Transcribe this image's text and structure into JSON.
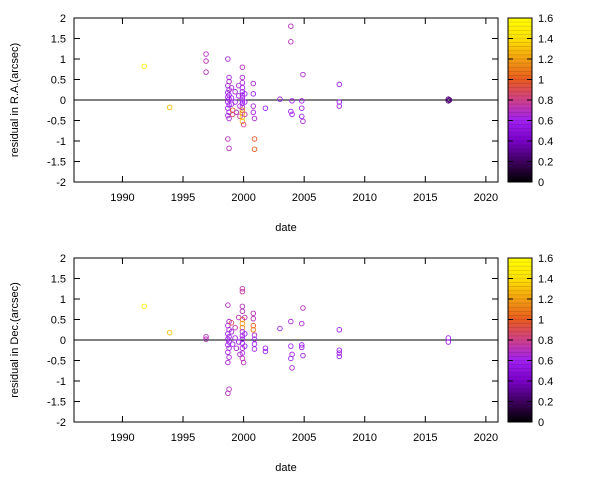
{
  "chart_data": [
    {
      "type": "scatter",
      "xlabel": "date",
      "ylabel": "residual in R.A.(arcsec)",
      "xlim": [
        1986,
        2021
      ],
      "ylim": [
        -2,
        2
      ],
      "xticks": [
        "1990",
        "1995",
        "2000",
        "2005",
        "2010",
        "2015",
        "2020"
      ],
      "yticks": [
        "2",
        "1.5",
        "1",
        "0.5",
        "0",
        "-0.5",
        "-1",
        "-1.5",
        "-2"
      ],
      "zero_line": true,
      "grid": false,
      "colorbar": {
        "position": "right",
        "range": [
          0,
          1.6
        ],
        "ticks": [
          "1.6",
          "1.4",
          "1.2",
          "1",
          "0.8",
          "0.6",
          "0.4",
          "0.2",
          "0"
        ],
        "palette": [
          "#000000",
          "#400060",
          "#7a00c8",
          "#a020f0",
          "#d0408a",
          "#e85a1e",
          "#f3a010",
          "#ffe000",
          "#ffff00"
        ]
      },
      "points": [
        {
          "x": 1991.8,
          "y": 0.82,
          "c": 1.6
        },
        {
          "x": 1993.9,
          "y": -0.18,
          "c": 1.3
        },
        {
          "x": 1996.9,
          "y": 1.12,
          "c": 0.7
        },
        {
          "x": 1996.9,
          "y": 0.95,
          "c": 0.7
        },
        {
          "x": 1996.9,
          "y": 0.68,
          "c": 0.7
        },
        {
          "x": 1998.7,
          "y": 1.0,
          "c": 0.65
        },
        {
          "x": 1998.8,
          "y": 0.55,
          "c": 0.65
        },
        {
          "x": 1998.8,
          "y": 0.45,
          "c": 0.65
        },
        {
          "x": 1998.7,
          "y": 0.35,
          "c": 0.65
        },
        {
          "x": 1998.8,
          "y": 0.25,
          "c": 0.6
        },
        {
          "x": 1998.7,
          "y": 0.18,
          "c": 0.6
        },
        {
          "x": 1998.8,
          "y": 0.12,
          "c": 0.6
        },
        {
          "x": 1998.7,
          "y": 0.07,
          "c": 0.6
        },
        {
          "x": 1998.8,
          "y": 0.02,
          "c": 0.6
        },
        {
          "x": 1998.7,
          "y": -0.05,
          "c": 0.6
        },
        {
          "x": 1998.8,
          "y": -0.12,
          "c": 0.6
        },
        {
          "x": 1998.7,
          "y": -0.2,
          "c": 0.6
        },
        {
          "x": 1998.8,
          "y": -0.3,
          "c": 0.6
        },
        {
          "x": 1998.7,
          "y": -0.38,
          "c": 0.65
        },
        {
          "x": 1998.8,
          "y": -0.45,
          "c": 0.65
        },
        {
          "x": 1998.7,
          "y": -0.95,
          "c": 0.7
        },
        {
          "x": 1998.8,
          "y": -1.18,
          "c": 0.7
        },
        {
          "x": 1999.0,
          "y": 0.3,
          "c": 0.65
        },
        {
          "x": 1999.0,
          "y": 0.05,
          "c": 0.6
        },
        {
          "x": 1999.0,
          "y": -0.1,
          "c": 0.6
        },
        {
          "x": 1999.1,
          "y": -0.25,
          "c": 1.0
        },
        {
          "x": 1999.1,
          "y": -0.35,
          "c": 0.9
        },
        {
          "x": 1999.3,
          "y": 0.2,
          "c": 0.65
        },
        {
          "x": 1999.3,
          "y": -0.05,
          "c": 0.6
        },
        {
          "x": 1999.4,
          "y": -0.3,
          "c": 0.7
        },
        {
          "x": 1999.6,
          "y": 0.35,
          "c": 0.65
        },
        {
          "x": 1999.6,
          "y": 0.1,
          "c": 0.6
        },
        {
          "x": 1999.7,
          "y": -0.15,
          "c": 0.65
        },
        {
          "x": 1999.7,
          "y": -0.4,
          "c": 0.8
        },
        {
          "x": 1999.9,
          "y": 0.8,
          "c": 0.7
        },
        {
          "x": 1999.9,
          "y": 0.55,
          "c": 0.65
        },
        {
          "x": 1999.9,
          "y": 0.42,
          "c": 0.65
        },
        {
          "x": 1999.9,
          "y": 0.3,
          "c": 0.6
        },
        {
          "x": 1999.9,
          "y": 0.2,
          "c": 0.6
        },
        {
          "x": 1999.9,
          "y": 0.12,
          "c": 0.6
        },
        {
          "x": 1999.9,
          "y": 0.05,
          "c": 0.6
        },
        {
          "x": 1999.9,
          "y": -0.02,
          "c": 0.6
        },
        {
          "x": 1999.9,
          "y": -0.08,
          "c": 0.6
        },
        {
          "x": 1999.9,
          "y": -0.18,
          "c": 0.65
        },
        {
          "x": 1999.9,
          "y": -0.25,
          "c": 1.1
        },
        {
          "x": 1999.9,
          "y": -0.32,
          "c": 1.2
        },
        {
          "x": 1999.9,
          "y": -0.42,
          "c": 1.3
        },
        {
          "x": 1999.9,
          "y": -0.52,
          "c": 1.3
        },
        {
          "x": 2000.0,
          "y": -0.6,
          "c": 0.8
        },
        {
          "x": 2000.1,
          "y": 0.15,
          "c": 0.6
        },
        {
          "x": 2000.1,
          "y": -0.05,
          "c": 0.6
        },
        {
          "x": 2000.1,
          "y": -0.35,
          "c": 0.75
        },
        {
          "x": 2000.8,
          "y": 0.4,
          "c": 0.65
        },
        {
          "x": 2000.8,
          "y": 0.15,
          "c": 0.6
        },
        {
          "x": 2000.8,
          "y": -0.15,
          "c": 0.65
        },
        {
          "x": 2000.8,
          "y": -0.3,
          "c": 0.65
        },
        {
          "x": 2000.9,
          "y": -0.45,
          "c": 0.65
        },
        {
          "x": 2000.9,
          "y": -0.95,
          "c": 1.0
        },
        {
          "x": 2000.9,
          "y": -1.2,
          "c": 1.0
        },
        {
          "x": 2001.8,
          "y": -0.2,
          "c": 0.6
        },
        {
          "x": 2003.0,
          "y": 0.02,
          "c": 0.6
        },
        {
          "x": 2003.9,
          "y": 1.8,
          "c": 0.7
        },
        {
          "x": 2003.9,
          "y": 1.42,
          "c": 0.7
        },
        {
          "x": 2004.0,
          "y": -0.02,
          "c": 0.6
        },
        {
          "x": 2003.9,
          "y": -0.28,
          "c": 0.6
        },
        {
          "x": 2004.0,
          "y": -0.35,
          "c": 0.6
        },
        {
          "x": 2004.9,
          "y": 0.62,
          "c": 0.65
        },
        {
          "x": 2004.8,
          "y": -0.02,
          "c": 0.6
        },
        {
          "x": 2004.8,
          "y": -0.2,
          "c": 0.6
        },
        {
          "x": 2004.8,
          "y": -0.4,
          "c": 0.6
        },
        {
          "x": 2004.9,
          "y": -0.52,
          "c": 0.65
        },
        {
          "x": 2007.9,
          "y": 0.38,
          "c": 0.6
        },
        {
          "x": 2007.9,
          "y": -0.05,
          "c": 0.6
        },
        {
          "x": 2007.9,
          "y": -0.15,
          "c": 0.6
        },
        {
          "x": 2016.9,
          "y": 0.02,
          "c": 0.3
        },
        {
          "x": 2016.9,
          "y": -0.02,
          "c": 0.2
        },
        {
          "x": 2017.0,
          "y": 0.0,
          "c": 0.25
        }
      ]
    },
    {
      "type": "scatter",
      "xlabel": "date",
      "ylabel": "residual in Dec.(arcsec)",
      "xlim": [
        1986,
        2021
      ],
      "ylim": [
        -2,
        2
      ],
      "xticks": [
        "1990",
        "1995",
        "2000",
        "2005",
        "2010",
        "2015",
        "2020"
      ],
      "yticks": [
        "2",
        "1.5",
        "1",
        "0.5",
        "0",
        "-0.5",
        "-1",
        "-1.5",
        "-2"
      ],
      "zero_line": true,
      "grid": false,
      "colorbar": {
        "position": "right",
        "range": [
          0,
          1.6
        ],
        "ticks": [
          "1.6",
          "1.4",
          "1.2",
          "1",
          "0.8",
          "0.6",
          "0.4",
          "0.2",
          "0"
        ],
        "palette": [
          "#000000",
          "#400060",
          "#7a00c8",
          "#a020f0",
          "#d0408a",
          "#e85a1e",
          "#f3a010",
          "#ffe000",
          "#ffff00"
        ]
      },
      "points": [
        {
          "x": 1991.8,
          "y": 0.82,
          "c": 1.6
        },
        {
          "x": 1993.9,
          "y": 0.18,
          "c": 1.3
        },
        {
          "x": 1996.9,
          "y": 0.08,
          "c": 0.7
        },
        {
          "x": 1996.9,
          "y": 0.02,
          "c": 0.7
        },
        {
          "x": 1998.7,
          "y": 0.85,
          "c": 0.7
        },
        {
          "x": 1998.8,
          "y": 0.45,
          "c": 0.65
        },
        {
          "x": 1998.7,
          "y": 0.35,
          "c": 0.65
        },
        {
          "x": 1998.8,
          "y": 0.25,
          "c": 0.6
        },
        {
          "x": 1998.7,
          "y": 0.15,
          "c": 0.6
        },
        {
          "x": 1998.8,
          "y": 0.08,
          "c": 0.6
        },
        {
          "x": 1998.7,
          "y": 0.02,
          "c": 0.6
        },
        {
          "x": 1998.8,
          "y": -0.05,
          "c": 0.6
        },
        {
          "x": 1998.7,
          "y": -0.12,
          "c": 0.6
        },
        {
          "x": 1998.8,
          "y": -0.2,
          "c": 0.6
        },
        {
          "x": 1998.7,
          "y": -0.3,
          "c": 0.65
        },
        {
          "x": 1998.8,
          "y": -0.42,
          "c": 0.65
        },
        {
          "x": 1998.7,
          "y": -0.55,
          "c": 0.65
        },
        {
          "x": 1998.8,
          "y": -1.2,
          "c": 0.7
        },
        {
          "x": 1998.7,
          "y": -1.3,
          "c": 0.7
        },
        {
          "x": 1999.0,
          "y": 0.42,
          "c": 0.9
        },
        {
          "x": 1999.0,
          "y": 0.2,
          "c": 0.65
        },
        {
          "x": 1999.1,
          "y": -0.1,
          "c": 0.6
        },
        {
          "x": 1999.3,
          "y": 0.3,
          "c": 0.7
        },
        {
          "x": 1999.3,
          "y": 0.05,
          "c": 0.6
        },
        {
          "x": 1999.4,
          "y": -0.2,
          "c": 0.65
        },
        {
          "x": 1999.6,
          "y": 0.55,
          "c": 0.7
        },
        {
          "x": 1999.6,
          "y": -0.05,
          "c": 0.6
        },
        {
          "x": 1999.7,
          "y": -0.35,
          "c": 0.65
        },
        {
          "x": 1999.9,
          "y": 1.25,
          "c": 0.75
        },
        {
          "x": 1999.9,
          "y": 1.18,
          "c": 0.75
        },
        {
          "x": 1999.9,
          "y": 0.82,
          "c": 0.7
        },
        {
          "x": 1999.9,
          "y": 0.7,
          "c": 0.7
        },
        {
          "x": 1999.9,
          "y": 0.5,
          "c": 1.0
        },
        {
          "x": 1999.9,
          "y": 0.4,
          "c": 1.2
        },
        {
          "x": 1999.9,
          "y": 0.3,
          "c": 1.1
        },
        {
          "x": 1999.9,
          "y": 0.2,
          "c": 0.65
        },
        {
          "x": 1999.9,
          "y": 0.1,
          "c": 0.6
        },
        {
          "x": 1999.9,
          "y": 0.02,
          "c": 0.6
        },
        {
          "x": 1999.9,
          "y": -0.08,
          "c": 0.6
        },
        {
          "x": 1999.9,
          "y": -0.2,
          "c": 0.65
        },
        {
          "x": 1999.9,
          "y": -0.32,
          "c": 0.65
        },
        {
          "x": 1999.9,
          "y": -0.45,
          "c": 0.7
        },
        {
          "x": 2000.0,
          "y": -0.55,
          "c": 0.7
        },
        {
          "x": 2000.1,
          "y": 0.55,
          "c": 0.7
        },
        {
          "x": 2000.1,
          "y": 0.15,
          "c": 0.6
        },
        {
          "x": 2000.1,
          "y": -0.15,
          "c": 0.6
        },
        {
          "x": 2000.8,
          "y": 0.65,
          "c": 0.7
        },
        {
          "x": 2000.8,
          "y": 0.52,
          "c": 0.7
        },
        {
          "x": 2000.8,
          "y": 0.35,
          "c": 1.0
        },
        {
          "x": 2000.8,
          "y": 0.25,
          "c": 1.1
        },
        {
          "x": 2000.9,
          "y": 0.12,
          "c": 0.65
        },
        {
          "x": 2000.9,
          "y": 0.02,
          "c": 0.6
        },
        {
          "x": 2000.9,
          "y": -0.1,
          "c": 0.6
        },
        {
          "x": 2000.9,
          "y": -0.22,
          "c": 0.6
        },
        {
          "x": 2001.8,
          "y": -0.2,
          "c": 0.6
        },
        {
          "x": 2001.8,
          "y": -0.28,
          "c": 0.6
        },
        {
          "x": 2003.0,
          "y": 0.28,
          "c": 0.6
        },
        {
          "x": 2003.9,
          "y": 0.45,
          "c": 0.65
        },
        {
          "x": 2003.9,
          "y": -0.15,
          "c": 0.6
        },
        {
          "x": 2004.0,
          "y": -0.35,
          "c": 0.6
        },
        {
          "x": 2003.9,
          "y": -0.45,
          "c": 0.6
        },
        {
          "x": 2004.0,
          "y": -0.68,
          "c": 0.65
        },
        {
          "x": 2004.9,
          "y": 0.78,
          "c": 0.7
        },
        {
          "x": 2004.8,
          "y": 0.4,
          "c": 0.65
        },
        {
          "x": 2004.8,
          "y": -0.12,
          "c": 0.6
        },
        {
          "x": 2004.8,
          "y": -0.18,
          "c": 0.6
        },
        {
          "x": 2004.9,
          "y": -0.38,
          "c": 0.6
        },
        {
          "x": 2007.9,
          "y": 0.25,
          "c": 0.6
        },
        {
          "x": 2007.9,
          "y": -0.25,
          "c": 0.6
        },
        {
          "x": 2007.9,
          "y": -0.32,
          "c": 0.6
        },
        {
          "x": 2007.9,
          "y": -0.4,
          "c": 0.6
        },
        {
          "x": 2016.9,
          "y": 0.05,
          "c": 0.6
        },
        {
          "x": 2016.9,
          "y": -0.05,
          "c": 0.6
        }
      ]
    }
  ]
}
